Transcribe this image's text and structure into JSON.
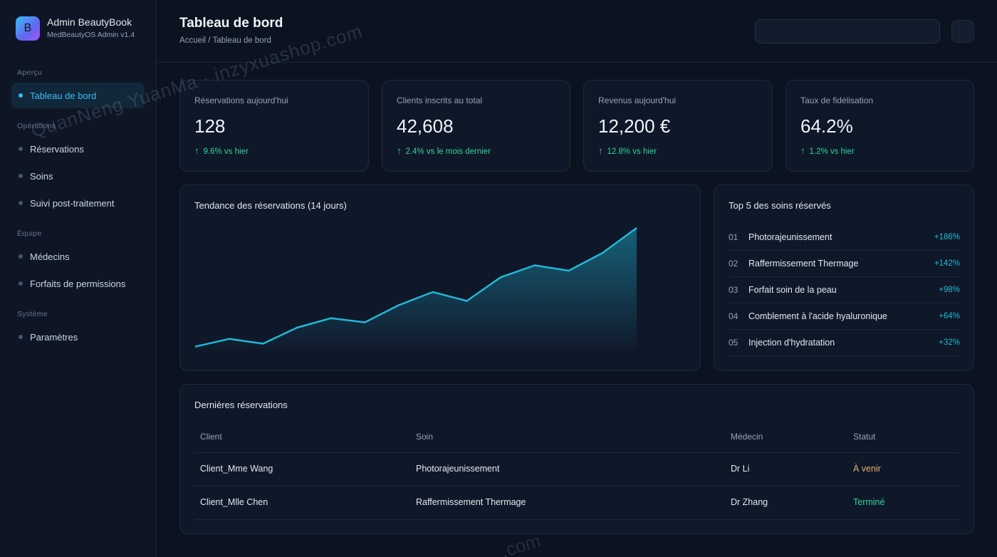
{
  "brand": {
    "logo_letter": "B",
    "title": "Admin BeautyBook",
    "subtitle": "MedBeautyOS Admin v1.4"
  },
  "sidebar": {
    "sections": [
      "Aperçu",
      "Opérations",
      "Équipe",
      "Système"
    ],
    "items": [
      {
        "label": "Tableau de bord",
        "active": true
      },
      {
        "label": "Réservations"
      },
      {
        "label": "Soins"
      },
      {
        "label": "Suivi post-traitement"
      },
      {
        "label": "Médecins"
      },
      {
        "label": "Forfaits de permissions"
      },
      {
        "label": "Paramètres"
      }
    ]
  },
  "header": {
    "title": "Tableau de bord",
    "breadcrumb": "Accueil / Tableau de bord"
  },
  "stats": [
    {
      "label": "Réservations aujourd'hui",
      "value": "128",
      "delta": "9.6% vs hier"
    },
    {
      "label": "Clients inscrits au total",
      "value": "42,608",
      "delta": "2.4% vs le mois dernier"
    },
    {
      "label": "Revenus aujourd'hui",
      "value": "12,200 €",
      "delta": "12.8% vs hier"
    },
    {
      "label": "Taux de fidélisation",
      "value": "64.2%",
      "delta": "1.2% vs hier"
    }
  ],
  "trend": {
    "title": "Tendance des réservations (14 jours)"
  },
  "chart_data": {
    "type": "area",
    "title": "Tendance des réservations (14 jours)",
    "x": [
      1,
      2,
      3,
      4,
      5,
      6,
      7,
      8,
      9,
      10,
      11,
      12,
      13,
      14
    ],
    "values": [
      4,
      17,
      9,
      36,
      52,
      45,
      74,
      96,
      81,
      121,
      141,
      132,
      162,
      204
    ],
    "ylim": [
      0,
      210
    ],
    "grid": false,
    "color": "#22b8d8"
  },
  "top": {
    "title": "Top 5 des soins réservés",
    "items": [
      {
        "rank": "01",
        "name": "Photorajeunissement",
        "growth": "+186%"
      },
      {
        "rank": "02",
        "name": "Raffermissement Thermage",
        "growth": "+142%"
      },
      {
        "rank": "03",
        "name": "Forfait soin de la peau",
        "growth": "+98%"
      },
      {
        "rank": "04",
        "name": "Comblement à l'acide hyaluronique",
        "growth": "+64%"
      },
      {
        "rank": "05",
        "name": "Injection d'hydratation",
        "growth": "+32%"
      }
    ]
  },
  "recent": {
    "title": "Dernières réservations",
    "columns": [
      "Client",
      "Soin",
      "Médecin",
      "Statut"
    ],
    "rows": [
      [
        "Client_Mme Wang",
        "Photorajeunissement",
        "Dr Li",
        "À venir"
      ],
      [
        "Client_Mlle Chen",
        "Raffermissement Thermage",
        "Dr Zhang",
        "Terminé"
      ]
    ]
  },
  "colors": {
    "accent": "#38bdf8",
    "positive": "#34d399",
    "upcoming": "#e5b06a",
    "line": "#22b8d8"
  },
  "icons": {
    "stat_delta": "arrow-up-icon"
  },
  "watermark": {
    "text1": "QuanNeng YuanMa · inzyxuashop.com",
    "text2": ".com"
  }
}
